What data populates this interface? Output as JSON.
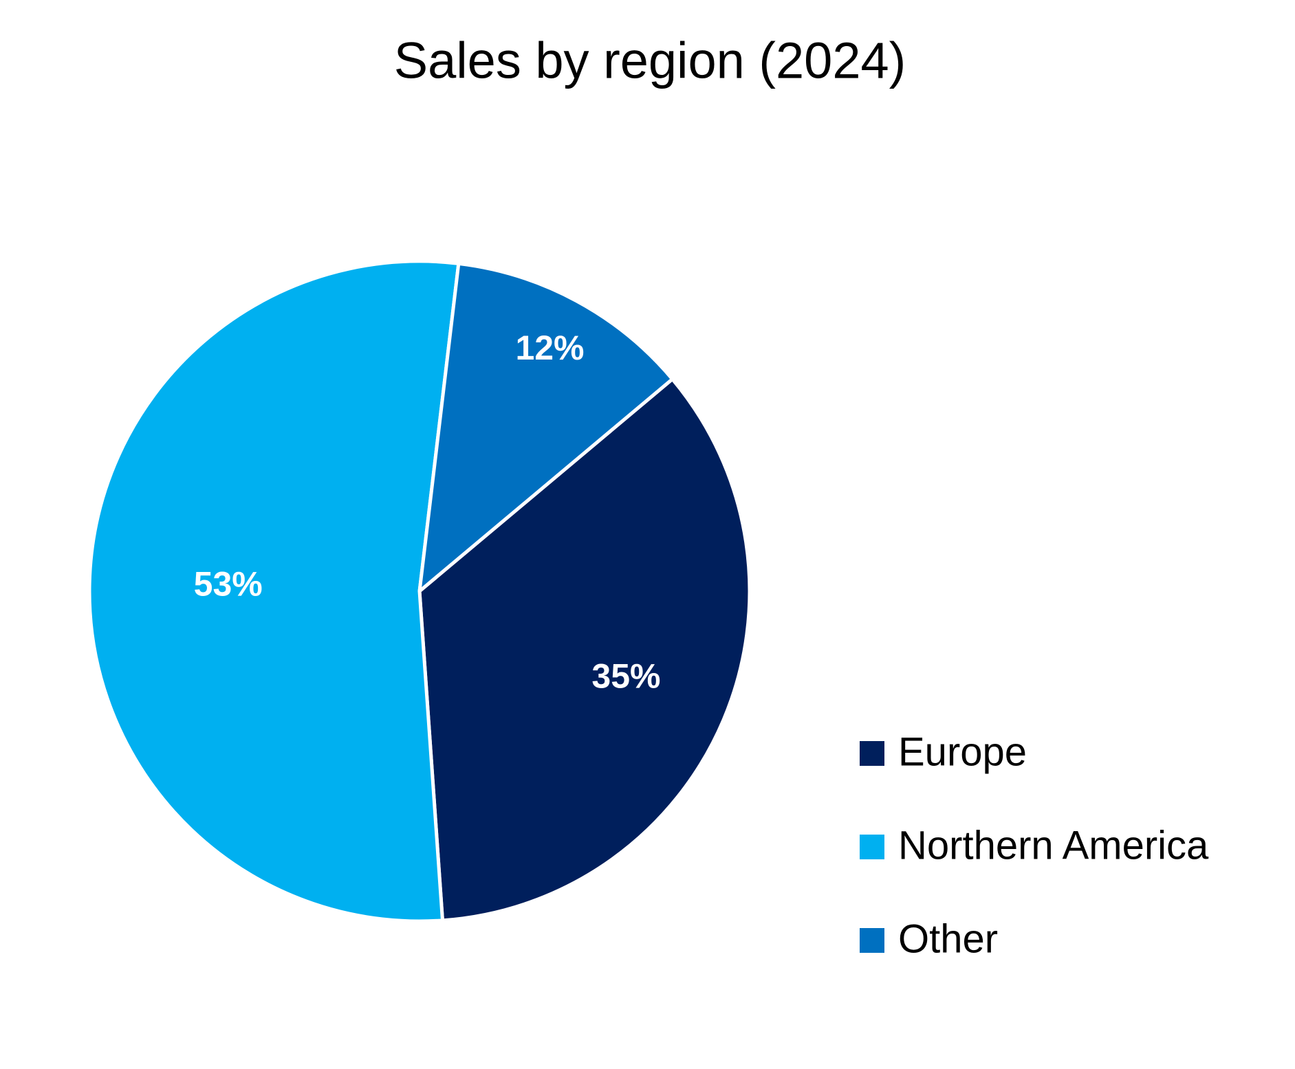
{
  "chart_data": {
    "type": "pie",
    "title": "Sales by region (2024)",
    "categories": [
      "Europe",
      "Northern America",
      "Other"
    ],
    "values": [
      35,
      53,
      12
    ],
    "value_labels": [
      "35%",
      "53%",
      "12%"
    ],
    "colors": [
      "#001f5c",
      "#00b0f0",
      "#0070c0"
    ],
    "legend": "right"
  }
}
